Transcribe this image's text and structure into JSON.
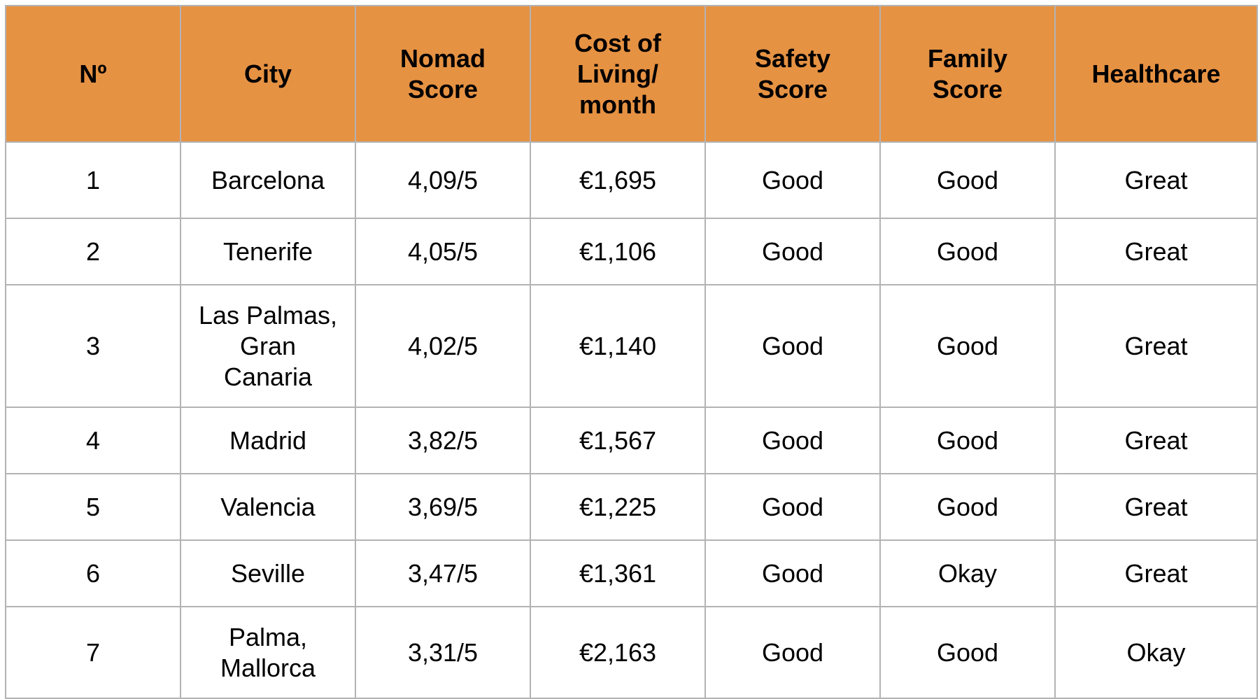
{
  "table": {
    "headers": [
      "Nº",
      "City",
      "Nomad Score",
      "Cost of Living/ month",
      "Safety Score",
      "Family Score",
      "Healthcare"
    ],
    "rows": [
      {
        "no": "1",
        "city": "Barcelona",
        "nomad": "4,09/5",
        "cost": "€1,695",
        "safety": "Good",
        "family": "Good",
        "health": "Great"
      },
      {
        "no": "2",
        "city": "Tenerife",
        "nomad": "4,05/5",
        "cost": "€1,106",
        "safety": "Good",
        "family": "Good",
        "health": "Great"
      },
      {
        "no": "3",
        "city": "Las Palmas, Gran Canaria",
        "nomad": "4,02/5",
        "cost": "€1,140",
        "safety": "Good",
        "family": "Good",
        "health": "Great"
      },
      {
        "no": "4",
        "city": "Madrid",
        "nomad": "3,82/5",
        "cost": "€1,567",
        "safety": "Good",
        "family": "Good",
        "health": "Great"
      },
      {
        "no": "5",
        "city": "Valencia",
        "nomad": "3,69/5",
        "cost": "€1,225",
        "safety": "Good",
        "family": "Good",
        "health": "Great"
      },
      {
        "no": "6",
        "city": "Seville",
        "nomad": "3,47/5",
        "cost": "€1,361",
        "safety": "Good",
        "family": "Okay",
        "health": "Great"
      },
      {
        "no": "7",
        "city": "Palma, Mallorca",
        "nomad": "3,31/5",
        "cost": "€2,163",
        "safety": "Good",
        "family": "Good",
        "health": "Okay"
      }
    ]
  },
  "colors": {
    "header_bg": "#e69243",
    "border": "#b3b3b3"
  }
}
